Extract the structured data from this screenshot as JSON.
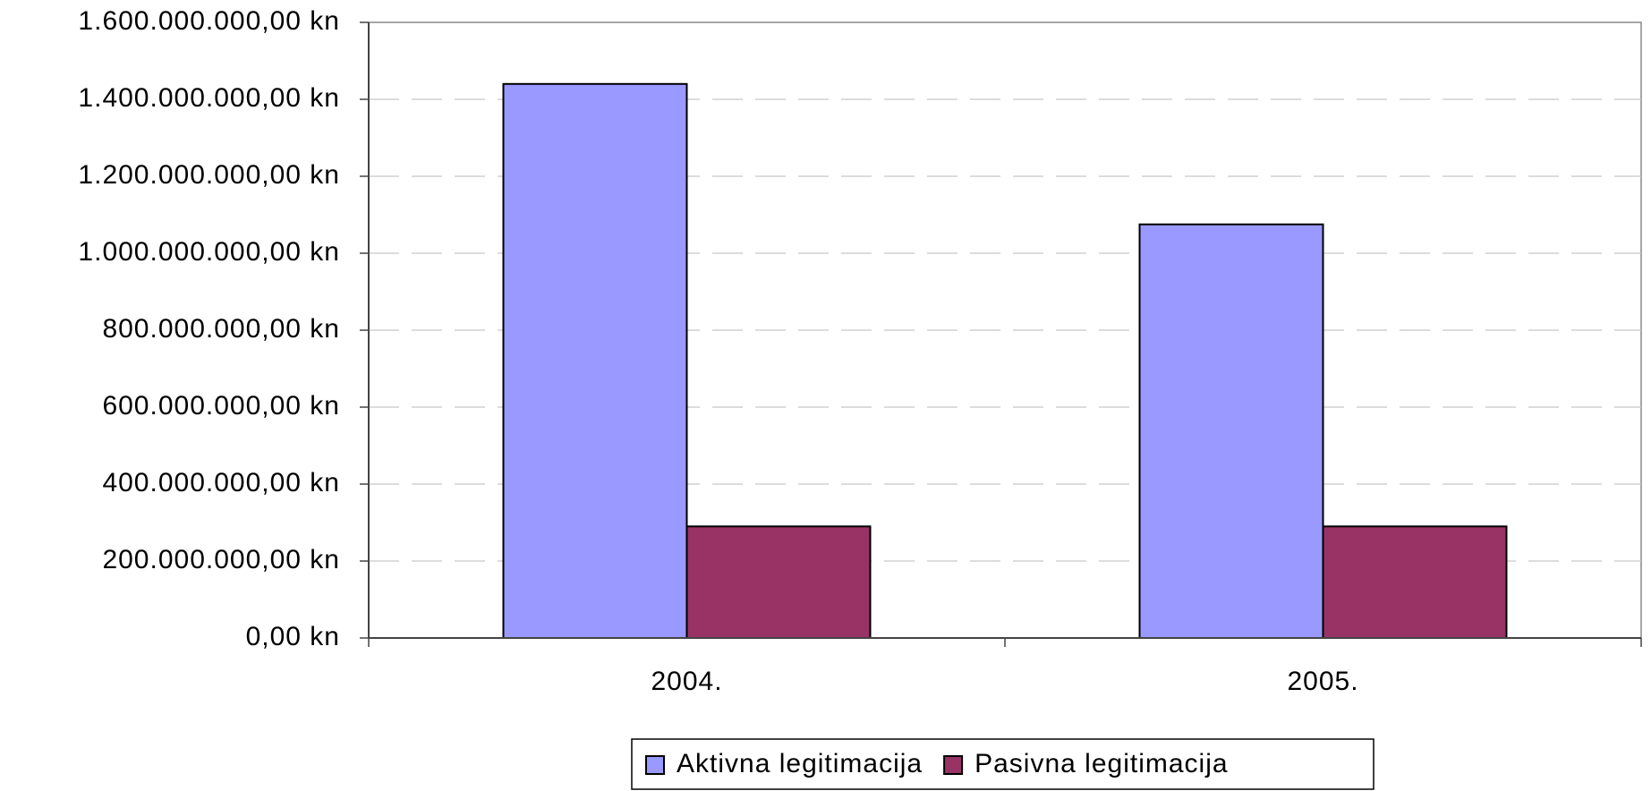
{
  "chart_data": {
    "type": "bar",
    "categories": [
      "2004.",
      "2005."
    ],
    "series": [
      {
        "name": "Aktivna legitimacija",
        "color": "#9999ff",
        "values": [
          1440000000,
          1075000000
        ]
      },
      {
        "name": "Pasivna legitimacija",
        "color": "#993366",
        "values": [
          290000000,
          290000000
        ]
      }
    ],
    "ylim": [
      0,
      1600000000
    ],
    "yticks": [
      {
        "value": 0,
        "label": "0,00 kn"
      },
      {
        "value": 200000000,
        "label": "200.000.000,00 kn"
      },
      {
        "value": 400000000,
        "label": "400.000.000,00 kn"
      },
      {
        "value": 600000000,
        "label": "600.000.000,00 kn"
      },
      {
        "value": 800000000,
        "label": "800.000.000,00 kn"
      },
      {
        "value": 1000000000,
        "label": "1.000.000.000,00 kn"
      },
      {
        "value": 1200000000,
        "label": "1.200.000.000,00 kn"
      },
      {
        "value": 1400000000,
        "label": "1.400.000.000,00 kn"
      },
      {
        "value": 1600000000,
        "label": "1.600.000.000,00 kn"
      }
    ],
    "grid": true,
    "legend": "bottom"
  }
}
